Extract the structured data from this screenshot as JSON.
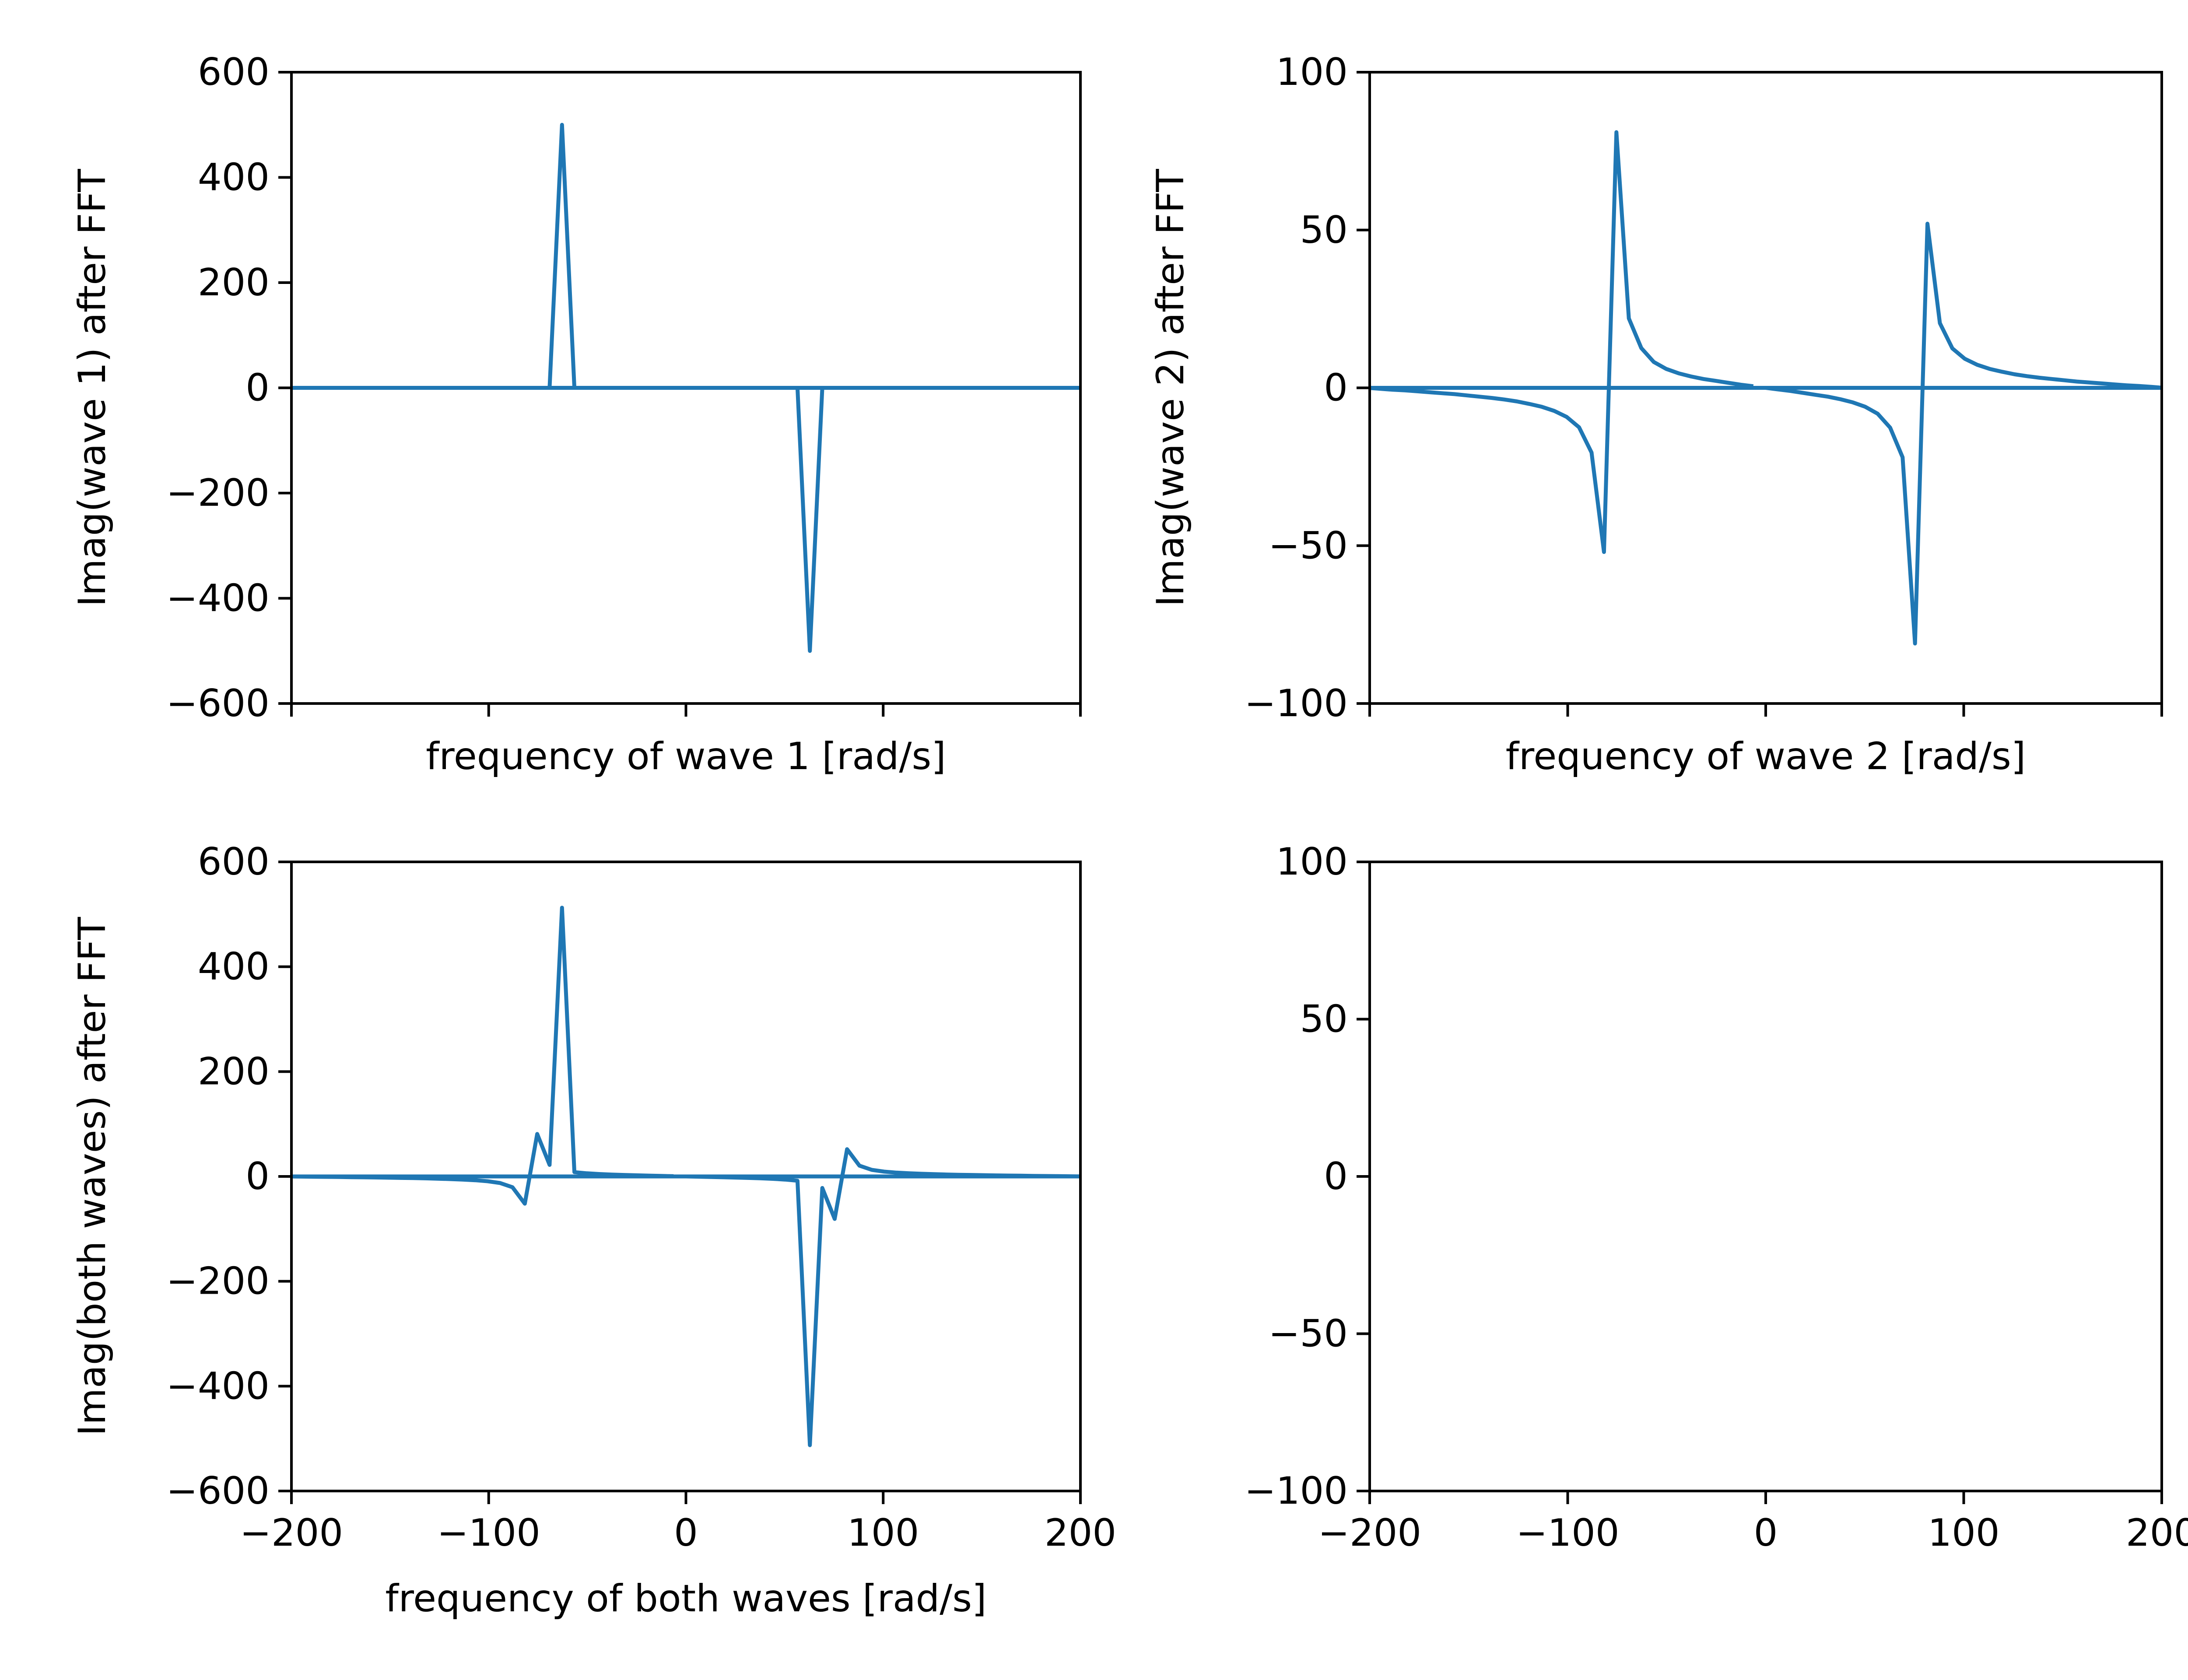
{
  "colors": {
    "line": "#1f77b4",
    "axis": "#000000",
    "background": "#ffffff"
  },
  "chart_data": [
    {
      "id": "wave1",
      "type": "line",
      "title": "",
      "xlabel": "frequency of wave 1 [rad/s]",
      "ylabel": "Imag(wave 1) after FFT",
      "xlim": [
        -200,
        200
      ],
      "ylim": [
        -600,
        600
      ],
      "xticks": [
        -200,
        -100,
        0,
        100,
        200
      ],
      "xtick_labels": [],
      "yticks": [
        -600,
        -400,
        -200,
        0,
        200,
        400,
        600
      ],
      "ytick_labels": [
        "−600",
        "−400",
        "−200",
        "0",
        "200",
        "400",
        "600"
      ],
      "series": [
        {
          "name": "wave 1",
          "x": [
            0,
            6.28,
            12.57,
            18.85,
            25.13,
            31.42,
            37.7,
            43.98,
            50.27,
            56.55,
            62.83,
            69.12,
            75.4,
            81.68,
            87.96,
            94.25,
            100.53,
            106.81,
            113.1,
            119.38,
            125.66,
            131.95,
            138.23,
            144.51,
            150.8,
            157.08,
            163.36,
            169.65,
            175.93,
            182.21,
            188.5,
            194.78,
            201.06,
            -201.06,
            -194.78,
            -188.5,
            -182.21,
            -175.93,
            -169.65,
            -163.36,
            -157.08,
            -150.8,
            -144.51,
            -138.23,
            -131.95,
            -125.66,
            -119.38,
            -113.1,
            -106.81,
            -100.53,
            -94.25,
            -87.96,
            -81.68,
            -75.4,
            -69.12,
            -62.83,
            -56.55,
            -50.27,
            -43.98,
            -37.7,
            -31.42,
            -25.13,
            -18.85,
            -12.57,
            -6.28
          ],
          "y": [
            0,
            0,
            0,
            0,
            0,
            0,
            0,
            0,
            0,
            0,
            -500,
            0,
            0,
            0,
            0,
            0,
            0,
            0,
            0,
            0,
            0,
            0,
            0,
            0,
            0,
            0,
            0,
            0,
            0,
            0,
            0,
            0,
            0,
            0,
            0,
            0,
            0,
            0,
            0,
            0,
            0,
            0,
            0,
            0,
            0,
            0,
            0,
            0,
            0,
            0,
            0,
            0,
            0,
            0,
            0,
            500,
            0,
            0,
            0,
            0,
            0,
            0,
            0,
            0,
            0
          ]
        }
      ]
    },
    {
      "id": "wave2",
      "type": "line",
      "title": "",
      "xlabel": "frequency of wave 2 [rad/s]",
      "ylabel": "Imag(wave 2) after FFT",
      "xlim": [
        -200,
        200
      ],
      "ylim": [
        -100,
        100
      ],
      "xticks": [
        -200,
        -100,
        0,
        100,
        200
      ],
      "xtick_labels": [],
      "yticks": [
        -100,
        -50,
        0,
        50,
        100
      ],
      "ytick_labels": [
        "−100",
        "−50",
        "0",
        "50",
        "100"
      ],
      "series": [
        {
          "name": "wave 2",
          "x": [
            0,
            6.28,
            12.57,
            18.85,
            25.13,
            31.42,
            37.7,
            43.98,
            50.27,
            56.55,
            62.83,
            69.12,
            75.4,
            81.68,
            87.96,
            94.25,
            100.53,
            106.81,
            113.1,
            119.38,
            125.66,
            131.95,
            138.23,
            144.51,
            150.8,
            157.08,
            163.36,
            169.65,
            175.93,
            182.21,
            188.5,
            194.78,
            201.06,
            -201.06,
            -194.78,
            -188.5,
            -182.21,
            -175.93,
            -169.65,
            -163.36,
            -157.08,
            -150.8,
            -144.51,
            -138.23,
            -131.95,
            -125.66,
            -119.38,
            -113.1,
            -106.81,
            -100.53,
            -94.25,
            -87.96,
            -81.68,
            -75.4,
            -69.12,
            -62.83,
            -56.55,
            -50.27,
            -43.98,
            -37.7,
            -31.42,
            -25.13,
            -18.85,
            -12.57,
            -6.28
          ],
          "y": [
            0,
            -0.5,
            -1.0,
            -1.6,
            -2.2,
            -2.8,
            -3.6,
            -4.6,
            -6.0,
            -8.2,
            -12.6,
            -22.0,
            -81.0,
            52.0,
            20.5,
            12.5,
            9.2,
            7.3,
            6.0,
            5.1,
            4.3,
            3.7,
            3.2,
            2.8,
            2.4,
            2.0,
            1.7,
            1.4,
            1.1,
            0.8,
            0.6,
            0.3,
            0,
            0,
            -0.3,
            -0.6,
            -0.8,
            -1.1,
            -1.4,
            -1.7,
            -2.0,
            -2.4,
            -2.8,
            -3.2,
            -3.7,
            -4.3,
            -5.1,
            -6.0,
            -7.3,
            -9.2,
            -12.5,
            -20.5,
            -52.0,
            81.0,
            22.0,
            12.6,
            8.2,
            6.0,
            4.6,
            3.6,
            2.8,
            2.2,
            1.6,
            1.0,
            0.5
          ]
        }
      ]
    },
    {
      "id": "both",
      "type": "line",
      "title": "",
      "xlabel": "frequency of both waves [rad/s]",
      "ylabel": "Imag(both waves) after FFT",
      "xlim": [
        -200,
        200
      ],
      "ylim": [
        -600,
        600
      ],
      "xticks": [
        -200,
        -100,
        0,
        100,
        200
      ],
      "xtick_labels": [
        "−200",
        "−100",
        "0",
        "100",
        "200"
      ],
      "yticks": [
        -600,
        -400,
        -200,
        0,
        200,
        400,
        600
      ],
      "ytick_labels": [
        "−600",
        "−400",
        "−200",
        "0",
        "200",
        "400",
        "600"
      ],
      "series": [
        {
          "name": "both waves",
          "x": [
            0,
            6.28,
            12.57,
            18.85,
            25.13,
            31.42,
            37.7,
            43.98,
            50.27,
            56.55,
            62.83,
            69.12,
            75.4,
            81.68,
            87.96,
            94.25,
            100.53,
            106.81,
            113.1,
            119.38,
            125.66,
            131.95,
            138.23,
            144.51,
            150.8,
            157.08,
            163.36,
            169.65,
            175.93,
            182.21,
            188.5,
            194.78,
            201.06,
            -201.06,
            -194.78,
            -188.5,
            -182.21,
            -175.93,
            -169.65,
            -163.36,
            -157.08,
            -150.8,
            -144.51,
            -138.23,
            -131.95,
            -125.66,
            -119.38,
            -113.1,
            -106.81,
            -100.53,
            -94.25,
            -87.96,
            -81.68,
            -75.4,
            -69.12,
            -62.83,
            -56.55,
            -50.27,
            -43.98,
            -37.7,
            -31.42,
            -25.13,
            -18.85,
            -12.57,
            -6.28
          ],
          "y": [
            0,
            -0.5,
            -1.0,
            -1.6,
            -2.2,
            -2.8,
            -3.6,
            -4.6,
            -6.0,
            -8.2,
            -512.6,
            -22.0,
            -81.0,
            52.0,
            20.5,
            12.5,
            9.2,
            7.3,
            6.0,
            5.1,
            4.3,
            3.7,
            3.2,
            2.8,
            2.4,
            2.0,
            1.7,
            1.4,
            1.1,
            0.8,
            0.6,
            0.3,
            0,
            0,
            -0.3,
            -0.6,
            -0.8,
            -1.1,
            -1.4,
            -1.7,
            -2.0,
            -2.4,
            -2.8,
            -3.2,
            -3.7,
            -4.3,
            -5.1,
            -6.0,
            -7.3,
            -9.2,
            -12.5,
            -20.5,
            -52.0,
            81.0,
            22.0,
            512.6,
            8.2,
            6.0,
            4.6,
            3.6,
            2.8,
            2.2,
            1.6,
            1.0,
            0.5
          ]
        }
      ]
    },
    {
      "id": "empty",
      "type": "line",
      "title": "",
      "xlabel": "",
      "ylabel": "",
      "xlim": [
        -200,
        200
      ],
      "ylim": [
        -100,
        100
      ],
      "xticks": [
        -200,
        -100,
        0,
        100,
        200
      ],
      "xtick_labels": [
        "−200",
        "−100",
        "0",
        "100",
        "200"
      ],
      "yticks": [
        -100,
        -50,
        0,
        50,
        100
      ],
      "ytick_labels": [
        "−100",
        "−50",
        "0",
        "50",
        "100"
      ],
      "series": []
    }
  ]
}
